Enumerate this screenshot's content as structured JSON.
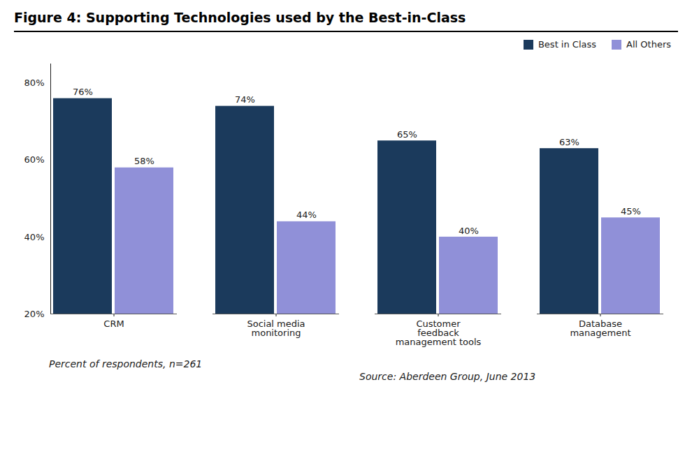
{
  "chart_data": {
    "type": "bar",
    "title": "Figure 4: Supporting Technologies used by the Best-in-Class",
    "categories": [
      "CRM",
      "Social media\nmonitoring",
      "Customer\nfeedback\nmanagement tools",
      "Database\nmanagement"
    ],
    "series": [
      {
        "name": "Best in Class",
        "color": "#1b3a5c",
        "values": [
          76,
          74,
          65,
          63
        ],
        "value_labels": [
          "76%",
          "74%",
          "65%",
          "63%"
        ]
      },
      {
        "name": "All Others",
        "color": "#9090d8",
        "values": [
          58,
          44,
          40,
          45
        ],
        "value_labels": [
          "58%",
          "44%",
          "40%",
          "45%"
        ]
      }
    ],
    "ylim": [
      20,
      85
    ],
    "yticks": [
      {
        "value": 20,
        "label": "20%"
      },
      {
        "value": 40,
        "label": "40%"
      },
      {
        "value": 60,
        "label": "60%"
      },
      {
        "value": 80,
        "label": "80%"
      }
    ],
    "grid": false,
    "legend": "upper right",
    "data_labels": true,
    "annotations": [
      "Percent of respondents, n=261",
      "Source: Aberdeen Group, June 2013"
    ]
  }
}
